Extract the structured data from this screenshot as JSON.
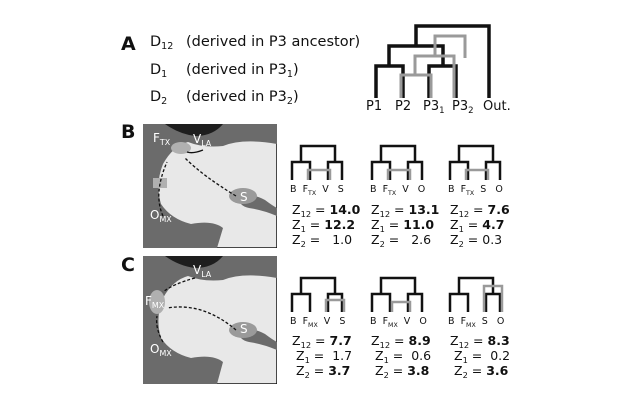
{
  "panelA": {
    "letter": "A",
    "definitions": [
      {
        "sym": "D",
        "sub": "12",
        "text_pre": "(derived in P3 ancestor)",
        "text_sub": "",
        "text_post": ""
      },
      {
        "sym": "D",
        "sub": "1",
        "text_pre": "(derived in P3",
        "text_sub": "1",
        "text_post": ")"
      },
      {
        "sym": "D",
        "sub": "2",
        "text_pre": "(derived in P3",
        "text_sub": "2",
        "text_post": ")"
      }
    ],
    "tips": [
      {
        "main": "P1",
        "sub": ""
      },
      {
        "main": "P2",
        "sub": ""
      },
      {
        "main": "P3",
        "sub": "1"
      },
      {
        "main": "P3",
        "sub": "2"
      },
      {
        "main": "Out.",
        "sub": ""
      }
    ]
  },
  "panelB": {
    "letter": "B",
    "map_labels": {
      "f": {
        "main": "F",
        "sub": "TX"
      },
      "v": {
        "main": "V",
        "sub": "LA"
      },
      "o": {
        "main": "O",
        "sub": "MX"
      },
      "s": {
        "main": "S",
        "sub": ""
      }
    },
    "trees": [
      {
        "tips": [
          {
            "main": "B",
            "sub": ""
          },
          {
            "main": "F",
            "sub": "TX"
          },
          {
            "main": "V",
            "sub": ""
          },
          {
            "main": "S",
            "sub": ""
          }
        ],
        "stats": [
          {
            "main": "Z",
            "sub": "12",
            "value": "14.0",
            "bold": true
          },
          {
            "main": "Z",
            "sub": "1",
            "value": "12.2",
            "bold": true
          },
          {
            "main": "Z",
            "sub": "2",
            "value": "1.0",
            "bold": false
          }
        ]
      },
      {
        "tips": [
          {
            "main": "B",
            "sub": ""
          },
          {
            "main": "F",
            "sub": "TX"
          },
          {
            "main": "V",
            "sub": ""
          },
          {
            "main": "O",
            "sub": ""
          }
        ],
        "stats": [
          {
            "main": "Z",
            "sub": "12",
            "value": "13.1",
            "bold": true
          },
          {
            "main": "Z",
            "sub": "1",
            "value": "11.0",
            "bold": true
          },
          {
            "main": "Z",
            "sub": "2",
            "value": "2.6",
            "bold": false
          }
        ]
      },
      {
        "tips": [
          {
            "main": "B",
            "sub": ""
          },
          {
            "main": "F",
            "sub": "TX"
          },
          {
            "main": "S",
            "sub": ""
          },
          {
            "main": "O",
            "sub": ""
          }
        ],
        "stats": [
          {
            "main": "Z",
            "sub": "12",
            "value": "7.6",
            "bold": true
          },
          {
            "main": "Z",
            "sub": "1",
            "value": "4.7",
            "bold": true
          },
          {
            "main": "Z",
            "sub": "2",
            "value": "0.3",
            "bold": false
          }
        ]
      }
    ]
  },
  "panelC": {
    "letter": "C",
    "map_labels": {
      "f": {
        "main": "F",
        "sub": "MX"
      },
      "v": {
        "main": "V",
        "sub": "LA"
      },
      "o": {
        "main": "O",
        "sub": "MX"
      },
      "s": {
        "main": "S",
        "sub": ""
      }
    },
    "trees": [
      {
        "tips": [
          {
            "main": "B",
            "sub": ""
          },
          {
            "main": "F",
            "sub": "MX"
          },
          {
            "main": "V",
            "sub": ""
          },
          {
            "main": "S",
            "sub": ""
          }
        ],
        "stats": [
          {
            "main": "Z",
            "sub": "12",
            "value": "7.7",
            "bold": true
          },
          {
            "main": "Z",
            "sub": "1",
            "value": "1.7",
            "bold": false
          },
          {
            "main": "Z",
            "sub": "2",
            "value": "3.7",
            "bold": true
          }
        ]
      },
      {
        "tips": [
          {
            "main": "B",
            "sub": ""
          },
          {
            "main": "F",
            "sub": "MX"
          },
          {
            "main": "V",
            "sub": ""
          },
          {
            "main": "O",
            "sub": ""
          }
        ],
        "stats": [
          {
            "main": "Z",
            "sub": "12",
            "value": "8.9",
            "bold": true
          },
          {
            "main": "Z",
            "sub": "1",
            "value": "0.6",
            "bold": false
          },
          {
            "main": "Z",
            "sub": "2",
            "value": "3.8",
            "bold": true
          }
        ]
      },
      {
        "tips": [
          {
            "main": "B",
            "sub": ""
          },
          {
            "main": "F",
            "sub": "MX"
          },
          {
            "main": "S",
            "sub": ""
          },
          {
            "main": "O",
            "sub": ""
          }
        ],
        "stats": [
          {
            "main": "Z",
            "sub": "12",
            "value": "8.3",
            "bold": true
          },
          {
            "main": "Z",
            "sub": "1",
            "value": "0.2",
            "bold": false
          },
          {
            "main": "Z",
            "sub": "2",
            "value": "3.6",
            "bold": true
          }
        ]
      }
    ]
  },
  "colors": {
    "ink": "#111111",
    "gene_tree": "#9a9a9a",
    "land": "#6b6b6b",
    "sea": "#e8e8e8",
    "highlight": "#b0b0b0"
  }
}
